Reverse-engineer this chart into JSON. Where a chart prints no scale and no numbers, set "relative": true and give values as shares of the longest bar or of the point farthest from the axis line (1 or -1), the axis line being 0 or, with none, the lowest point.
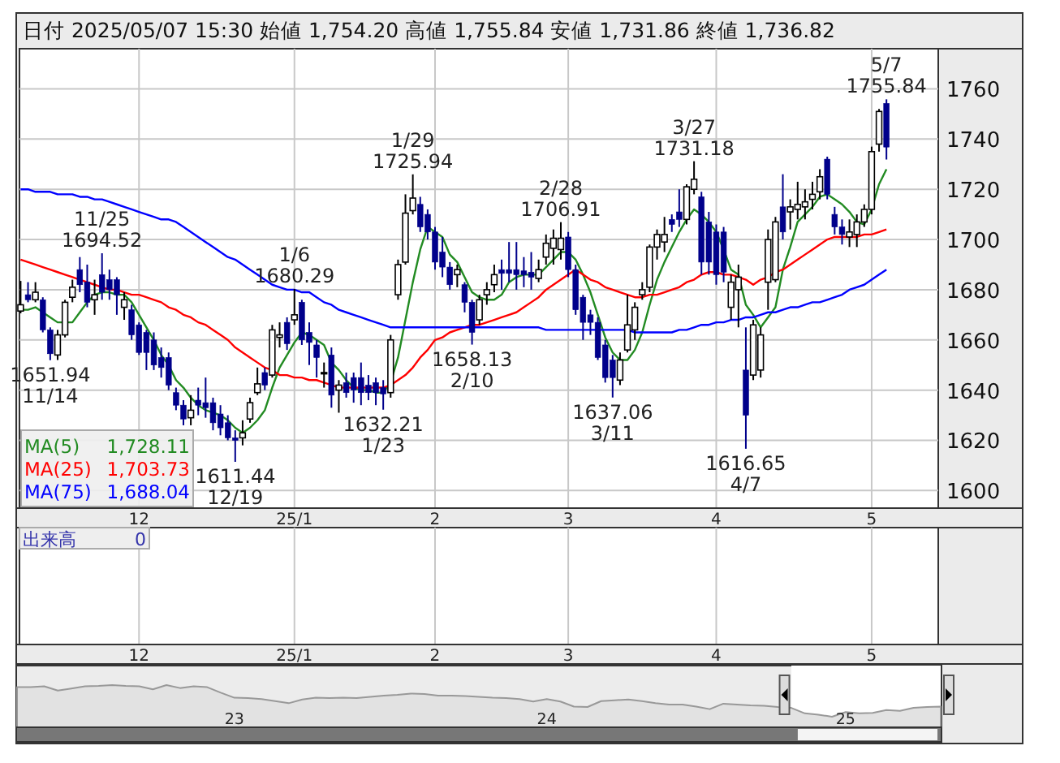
{
  "chart_data": [
    {
      "type": "candlestick",
      "title": "日付 2025/05/07 15:30 始値 1,754.20 高値 1,755.84 安値 1,731.86 終値 1,736.82",
      "grid": true,
      "legend": "bottom left",
      "categories": [
        null,
        null,
        null,
        null,
        null,
        null,
        null,
        null,
        null,
        null,
        null,
        null,
        null,
        null,
        null,
        null,
        "12",
        null,
        null,
        null,
        null,
        null,
        null,
        null,
        null,
        null,
        null,
        null,
        null,
        null,
        null,
        null,
        null,
        null,
        null,
        null,
        null,
        "25/1",
        null,
        null,
        null,
        null,
        null,
        null,
        null,
        null,
        null,
        null,
        null,
        null,
        null,
        null,
        null,
        null,
        null,
        null,
        "2",
        null,
        null,
        null,
        null,
        null,
        null,
        null,
        null,
        null,
        null,
        null,
        null,
        null,
        null,
        null,
        null,
        null,
        "3",
        null,
        null,
        null,
        null,
        null,
        null,
        null,
        null,
        null,
        null,
        null,
        null,
        null,
        null,
        null,
        null,
        null,
        null,
        null,
        "4",
        null,
        null,
        null,
        null,
        null,
        null,
        null,
        null,
        null,
        null,
        null,
        null,
        null,
        null,
        null,
        null,
        null,
        null,
        null,
        null,
        "5",
        null,
        null
      ],
      "ylim": [
        1593,
        1776
      ],
      "yticks": [
        1600,
        1620,
        1640,
        1660,
        1680,
        1700,
        1720,
        1740,
        1760
      ],
      "ohlc": [
        [
          1671.5,
          1683.5,
          1670.6,
          1674
        ],
        [
          1678,
          1683,
          1675,
          1676
        ],
        [
          1676,
          1683,
          1675,
          1679
        ],
        [
          1676,
          1677,
          1663,
          1664
        ],
        [
          1664,
          1665,
          1651.94,
          1654.5
        ],
        [
          1654,
          1664,
          1652,
          1662
        ],
        [
          1662,
          1676,
          1661,
          1675
        ],
        [
          1677,
          1684,
          1675,
          1681
        ],
        [
          1688,
          1693,
          1679,
          1682
        ],
        [
          1683,
          1690,
          1673,
          1675
        ],
        [
          1676,
          1684,
          1670,
          1678
        ],
        [
          1686,
          1694.52,
          1676,
          1679
        ],
        [
          1684,
          1688,
          1676,
          1680
        ],
        [
          1684,
          1685,
          1670,
          1678
        ],
        [
          1673,
          1679,
          1668,
          1676
        ],
        [
          1672,
          1674,
          1660,
          1662
        ],
        [
          1666,
          1667,
          1654,
          1655
        ],
        [
          1663,
          1664,
          1648,
          1655
        ],
        [
          1660,
          1663,
          1648,
          1650
        ],
        [
          1653,
          1657,
          1645,
          1649
        ],
        [
          1653,
          1655,
          1640,
          1642
        ],
        [
          1639,
          1641,
          1632,
          1634
        ],
        [
          1634,
          1636,
          1626,
          1628.5
        ],
        [
          1629,
          1638,
          1626,
          1632
        ],
        [
          1636,
          1641,
          1630,
          1634
        ],
        [
          1635,
          1645,
          1629,
          1633
        ],
        [
          1635,
          1637,
          1624,
          1627
        ],
        [
          1630.5,
          1634,
          1622,
          1625
        ],
        [
          1627,
          1630,
          1620,
          1621
        ],
        [
          1621,
          1624,
          1611.44,
          1620
        ],
        [
          1621,
          1628,
          1618,
          1623
        ],
        [
          1628.5,
          1637,
          1627,
          1635
        ],
        [
          1639,
          1649,
          1638,
          1642.5
        ],
        [
          1647,
          1649,
          1640,
          1642
        ],
        [
          1646,
          1666,
          1645,
          1664
        ],
        [
          1661,
          1667,
          1657,
          1662
        ],
        [
          1667,
          1669,
          1656,
          1658.5
        ],
        [
          1668,
          1680.29,
          1666,
          1670
        ],
        [
          1675,
          1676,
          1658,
          1660
        ],
        [
          1663,
          1667,
          1650,
          1659
        ],
        [
          1658,
          1660,
          1645,
          1653
        ],
        [
          1647,
          1651,
          1641,
          1647
        ],
        [
          1654,
          1657,
          1633,
          1638
        ],
        [
          1640,
          1644,
          1631,
          1642
        ],
        [
          1643,
          1647,
          1637,
          1639
        ],
        [
          1645,
          1647,
          1635,
          1640
        ],
        [
          1645,
          1651,
          1634,
          1639
        ],
        [
          1642,
          1646,
          1636,
          1639
        ],
        [
          1643,
          1645,
          1634,
          1639
        ],
        [
          1641,
          1644,
          1632.21,
          1638.5
        ],
        [
          1639,
          1662,
          1637,
          1660
        ],
        [
          1678,
          1692,
          1676,
          1690
        ],
        [
          1691,
          1718,
          1690,
          1710.5
        ],
        [
          1711.5,
          1725.94,
          1710,
          1716.5
        ],
        [
          1714,
          1717,
          1703,
          1705
        ],
        [
          1710,
          1712,
          1700,
          1703
        ],
        [
          1703,
          1705,
          1688,
          1691
        ],
        [
          1695,
          1701,
          1685,
          1689
        ],
        [
          1689,
          1691,
          1680,
          1682
        ],
        [
          1686,
          1690,
          1681,
          1688
        ],
        [
          1682,
          1683,
          1671,
          1675
        ],
        [
          1675,
          1676,
          1658.13,
          1663
        ],
        [
          1668,
          1678,
          1666,
          1676
        ],
        [
          1678,
          1683,
          1674,
          1680
        ],
        [
          1682,
          1690,
          1679,
          1686
        ],
        [
          1688,
          1692,
          1680,
          1686.5
        ],
        [
          1688,
          1699,
          1683,
          1686.5
        ],
        [
          1688,
          1699,
          1680,
          1686
        ],
        [
          1687.5,
          1693,
          1681,
          1686
        ],
        [
          1687,
          1695,
          1680,
          1685
        ],
        [
          1684.5,
          1692,
          1683,
          1688
        ],
        [
          1693,
          1702,
          1690,
          1698.5
        ],
        [
          1696.5,
          1704,
          1690,
          1700.5
        ],
        [
          1696,
          1706.91,
          1692,
          1700.5
        ],
        [
          1701,
          1703,
          1685,
          1688
        ],
        [
          1688,
          1690,
          1670,
          1672
        ],
        [
          1677,
          1678,
          1660,
          1667
        ],
        [
          1670,
          1672,
          1662,
          1667
        ],
        [
          1667,
          1669,
          1652,
          1653
        ],
        [
          1658,
          1660,
          1643,
          1645
        ],
        [
          1652,
          1654,
          1637.06,
          1645
        ],
        [
          1644,
          1655,
          1642,
          1652
        ],
        [
          1656,
          1678,
          1655,
          1666
        ],
        [
          1664,
          1675,
          1660,
          1673
        ],
        [
          1678,
          1683,
          1676,
          1680
        ],
        [
          1681,
          1698,
          1679,
          1697
        ],
        [
          1697,
          1704,
          1692,
          1702
        ],
        [
          1699,
          1709,
          1695,
          1702
        ],
        [
          1708,
          1710,
          1703,
          1706
        ],
        [
          1711,
          1720,
          1705,
          1708
        ],
        [
          1708,
          1722,
          1706,
          1721
        ],
        [
          1720,
          1731.18,
          1718,
          1724
        ],
        [
          1717,
          1719,
          1686,
          1691
        ],
        [
          1707,
          1711,
          1686,
          1691
        ],
        [
          1703,
          1706,
          1682,
          1686
        ],
        [
          1703,
          1705,
          1683,
          1687
        ],
        [
          1673,
          1686,
          1668,
          1683
        ],
        [
          1680,
          1690,
          1665,
          1685
        ],
        [
          1648,
          1665,
          1616.65,
          1630
        ],
        [
          1646,
          1668,
          1644,
          1666
        ],
        [
          1648,
          1665,
          1645,
          1662
        ],
        [
          1683,
          1704,
          1672,
          1700
        ],
        [
          1684,
          1709,
          1683,
          1707
        ],
        [
          1713,
          1726,
          1700,
          1703
        ],
        [
          1711,
          1716,
          1704,
          1713
        ],
        [
          1712,
          1723,
          1708,
          1714
        ],
        [
          1713,
          1720,
          1708,
          1715
        ],
        [
          1716,
          1723,
          1712,
          1718
        ],
        [
          1719,
          1728,
          1716,
          1725
        ],
        [
          1732,
          1733,
          1716,
          1718
        ],
        [
          1710,
          1713,
          1702,
          1705
        ],
        [
          1705,
          1708,
          1698,
          1702
        ],
        [
          1701,
          1708,
          1697,
          1703
        ],
        [
          1702,
          1710,
          1697,
          1707
        ],
        [
          1707,
          1714,
          1705,
          1712
        ],
        [
          1712,
          1737,
          1710,
          1735
        ],
        [
          1738,
          1752,
          1735,
          1751
        ],
        [
          1754.2,
          1755.84,
          1731.86,
          1736.82
        ]
      ],
      "series": [
        {
          "type": "line",
          "name": "MA(5)",
          "color": "#228b22",
          "values": [
            1672,
            1672,
            1673,
            1671,
            1669,
            1667,
            1667,
            1667,
            1671,
            1675,
            1678,
            1679,
            1679,
            1678,
            1678,
            1675,
            1670,
            1665,
            1660,
            1654,
            1650,
            1644,
            1641,
            1637,
            1634,
            1632,
            1631,
            1630,
            1628,
            1625,
            1623,
            1625,
            1628,
            1632,
            1641,
            1649,
            1654,
            1659,
            1663,
            1662,
            1660,
            1658,
            1651,
            1648,
            1644,
            1641,
            1640,
            1640,
            1639,
            1639,
            1643,
            1653,
            1668,
            1683,
            1696,
            1705,
            1703,
            1701,
            1694,
            1691,
            1685,
            1679,
            1677,
            1676,
            1676,
            1678,
            1683,
            1685,
            1686,
            1686,
            1686,
            1689,
            1692,
            1695,
            1695,
            1692,
            1686,
            1679,
            1670,
            1661,
            1655,
            1652,
            1652,
            1656,
            1663,
            1674,
            1684,
            1691,
            1697,
            1703,
            1708,
            1712,
            1710,
            1707,
            1703,
            1696,
            1688,
            1686,
            1674,
            1670,
            1665,
            1669,
            1673,
            1688,
            1697,
            1707,
            1710,
            1713,
            1717,
            1718,
            1716,
            1714,
            1711,
            1707,
            1706,
            1712,
            1722,
            1728
          ]
        },
        {
          "type": "line",
          "name": "MA(25)",
          "color": "#ff0000",
          "values": [
            1692,
            1691,
            1690,
            1689,
            1688,
            1687,
            1686,
            1685,
            1684,
            1683,
            1682,
            1681,
            1680,
            1680,
            1679,
            1678,
            1678,
            1677,
            1676,
            1675,
            1673,
            1672,
            1670,
            1669,
            1667,
            1666,
            1664,
            1662,
            1660,
            1657,
            1655,
            1653,
            1651,
            1649,
            1648,
            1646,
            1646,
            1645,
            1645,
            1644,
            1644,
            1643,
            1642,
            1641,
            1641,
            1641,
            1641,
            1641,
            1641,
            1641,
            1642,
            1644,
            1646,
            1649,
            1653,
            1656,
            1660,
            1661,
            1663,
            1664,
            1665,
            1666,
            1666,
            1667,
            1668,
            1669,
            1670,
            1671,
            1673,
            1675,
            1677,
            1680,
            1682,
            1684,
            1686,
            1688,
            1686,
            1684,
            1683,
            1681,
            1680,
            1679,
            1678,
            1677,
            1677,
            1678,
            1678,
            1679,
            1680,
            1681,
            1683,
            1684,
            1686,
            1687,
            1687,
            1686,
            1686,
            1685,
            1684,
            1682,
            1684,
            1685,
            1687,
            1688,
            1690,
            1692,
            1694,
            1696,
            1698,
            1700,
            1701,
            1701,
            1701,
            1701,
            1702,
            1702,
            1703,
            1704
          ]
        },
        {
          "type": "line",
          "name": "MA(75)",
          "color": "#0000ff",
          "values": [
            1720,
            1720,
            1719,
            1719,
            1719,
            1718,
            1718,
            1718,
            1717,
            1717,
            1716,
            1716,
            1715,
            1714,
            1713,
            1712,
            1711,
            1710,
            1709,
            1708,
            1708,
            1707,
            1705,
            1703,
            1701,
            1699,
            1697,
            1695,
            1693,
            1692,
            1690,
            1688,
            1686,
            1684,
            1682,
            1681,
            1680,
            1680,
            1679,
            1679,
            1677,
            1675,
            1674,
            1672,
            1671,
            1670,
            1669,
            1668,
            1667,
            1666,
            1665,
            1665,
            1665,
            1665,
            1665,
            1665,
            1665,
            1665,
            1665,
            1665,
            1665,
            1665,
            1665,
            1665,
            1665,
            1665,
            1665,
            1665,
            1665,
            1665,
            1665,
            1664,
            1664,
            1664,
            1664,
            1664,
            1664,
            1664,
            1664,
            1664,
            1664,
            1664,
            1664,
            1663,
            1663,
            1663,
            1663,
            1663,
            1663,
            1664,
            1664,
            1665,
            1666,
            1666,
            1667,
            1667,
            1668,
            1668,
            1669,
            1669,
            1670,
            1671,
            1671,
            1672,
            1673,
            1673,
            1674,
            1675,
            1675,
            1676,
            1677,
            1678,
            1680,
            1681,
            1682,
            1684,
            1686,
            1688
          ]
        }
      ],
      "annotations": [
        "1,728.11",
        "1,703.73",
        "1,688.04",
        {
          "text": "11/25",
          "y": 1694.52
        },
        {
          "text": "1694.52",
          "y": 1694.52
        },
        {
          "text": "1651.94",
          "y": 1651.94
        },
        {
          "text": "11/14",
          "y": 1651.94
        },
        {
          "text": "1611.44",
          "y": 1611.44
        },
        {
          "text": "12/19",
          "y": 1611.44
        },
        {
          "text": "1/6",
          "y": 1680.29
        },
        {
          "text": "1680.29",
          "y": 1680.29
        },
        {
          "text": "1632.21",
          "y": 1632.21
        },
        {
          "text": "1/23",
          "y": 1632.21
        },
        {
          "text": "1/29",
          "y": 1725.94
        },
        {
          "text": "1725.94",
          "y": 1725.94
        },
        {
          "text": "1658.13",
          "y": 1658.13
        },
        {
          "text": "2/10",
          "y": 1658.13
        },
        {
          "text": "2/28",
          "y": 1706.91
        },
        {
          "text": "1706.91",
          "y": 1706.91
        },
        {
          "text": "1637.06",
          "y": 1637.06
        },
        {
          "text": "3/11",
          "y": 1637.06
        },
        {
          "text": "3/27",
          "y": 1731.18
        },
        {
          "text": "1731.18",
          "y": 1731.18
        },
        {
          "text": "1616.65",
          "y": 1616.65
        },
        {
          "text": "4/7",
          "y": 1616.65
        },
        {
          "text": "5/7",
          "y": 1755.84
        },
        {
          "text": "1755.84",
          "y": 1755.84
        }
      ]
    },
    {
      "type": "other",
      "annotations": [
        "出来高",
        "0"
      ],
      "categories": [
        null,
        null,
        null,
        null,
        null,
        null,
        null,
        null,
        null,
        null,
        null,
        null,
        null,
        null,
        null,
        null,
        "12",
        null,
        null,
        null,
        null,
        null,
        null,
        null,
        null,
        null,
        null,
        null,
        null,
        null,
        null,
        null,
        null,
        null,
        null,
        null,
        null,
        "25/1",
        null,
        null,
        null,
        null,
        null,
        null,
        null,
        null,
        null,
        null,
        null,
        null,
        null,
        null,
        null,
        null,
        null,
        null,
        "2",
        null,
        null,
        null,
        null,
        null,
        null,
        null,
        null,
        null,
        null,
        null,
        null,
        null,
        null,
        null,
        null,
        null,
        "3",
        null,
        null,
        null,
        null,
        null,
        null,
        null,
        null,
        null,
        null,
        null,
        null,
        null,
        null,
        null,
        null,
        null,
        null,
        null,
        "4",
        null,
        null,
        null,
        null,
        null,
        null,
        null,
        null,
        null,
        null,
        null,
        null,
        null,
        null,
        null,
        null,
        null,
        null,
        null,
        null,
        "5",
        null,
        null
      ]
    },
    {
      "type": "area",
      "relative": true,
      "color": "#999999",
      "categories": [
        null,
        null,
        null,
        null,
        null,
        null,
        null,
        null,
        null,
        null,
        null,
        null,
        null,
        null,
        null,
        null,
        "23",
        null,
        null,
        null,
        null,
        null,
        null,
        null,
        null,
        null,
        null,
        null,
        null,
        null,
        null,
        null,
        null,
        null,
        null,
        null,
        null,
        null,
        null,
        "24",
        null,
        null,
        null,
        null,
        null,
        null,
        null,
        null,
        null,
        null,
        null,
        null,
        null,
        null,
        null,
        null,
        null,
        null,
        null,
        null,
        null,
        "25",
        null,
        null,
        null,
        null,
        null,
        null,
        null
      ],
      "values": [
        0.95,
        0.95,
        0.97,
        0.87,
        0.92,
        0.97,
        0.98,
        1,
        0.98,
        0.97,
        0.9,
        1,
        0.93,
        0.97,
        0.95,
        0.82,
        0.7,
        0.69,
        0.67,
        0.62,
        0.57,
        0.66,
        0.7,
        0.69,
        0.7,
        0.69,
        0.72,
        0.75,
        0.77,
        0.8,
        0.79,
        0.75,
        0.75,
        0.74,
        0.72,
        0.7,
        0.69,
        0.67,
        0.61,
        0.67,
        0.61,
        0.49,
        0.48,
        0.62,
        0.64,
        0.66,
        0.62,
        0.57,
        0.54,
        0.54,
        0.49,
        0.43,
        0.56,
        0.54,
        0.52,
        0.51,
        0.48,
        0.46,
        0.33,
        0.3,
        0.25,
        0.36,
        0.33,
        0.34,
        0.41,
        0.39,
        0.46,
        0.48,
        0.49
      ]
    }
  ]
}
